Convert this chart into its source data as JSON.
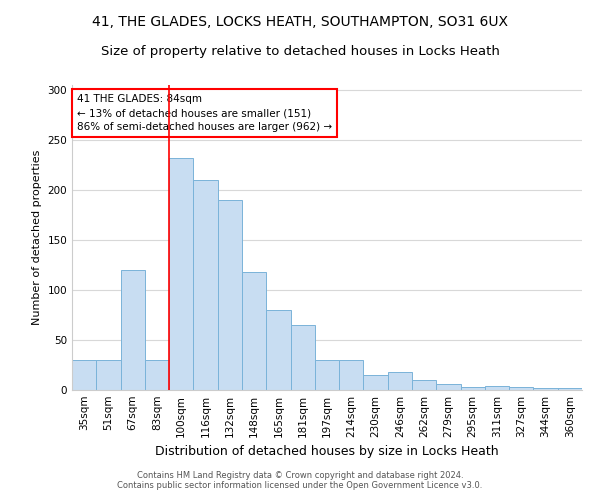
{
  "title1": "41, THE GLADES, LOCKS HEATH, SOUTHAMPTON, SO31 6UX",
  "title2": "Size of property relative to detached houses in Locks Heath",
  "xlabel": "Distribution of detached houses by size in Locks Heath",
  "ylabel": "Number of detached properties",
  "categories": [
    "35sqm",
    "51sqm",
    "67sqm",
    "83sqm",
    "100sqm",
    "116sqm",
    "132sqm",
    "148sqm",
    "165sqm",
    "181sqm",
    "197sqm",
    "214sqm",
    "230sqm",
    "246sqm",
    "262sqm",
    "279sqm",
    "295sqm",
    "311sqm",
    "327sqm",
    "344sqm",
    "360sqm"
  ],
  "values": [
    30,
    30,
    120,
    30,
    232,
    210,
    190,
    118,
    80,
    65,
    30,
    30,
    15,
    18,
    10,
    6,
    3,
    4,
    3,
    2,
    2
  ],
  "bar_color": "#c8ddf2",
  "bar_edge_color": "#7ab3d9",
  "red_line_index": 3,
  "annotation_text": "41 THE GLADES: 84sqm\n← 13% of detached houses are smaller (151)\n86% of semi-detached houses are larger (962) →",
  "annotation_box_color": "white",
  "annotation_box_edge": "red",
  "ylim": [
    0,
    305
  ],
  "yticks": [
    0,
    50,
    100,
    150,
    200,
    250,
    300
  ],
  "background_color": "white",
  "grid_color": "#d8d8d8",
  "footer_text": "Contains HM Land Registry data © Crown copyright and database right 2024.\nContains public sector information licensed under the Open Government Licence v3.0.",
  "title_fontsize": 10,
  "subtitle_fontsize": 9.5,
  "xlabel_fontsize": 9,
  "ylabel_fontsize": 8,
  "tick_fontsize": 7.5,
  "annotation_fontsize": 7.5,
  "footer_fontsize": 6
}
